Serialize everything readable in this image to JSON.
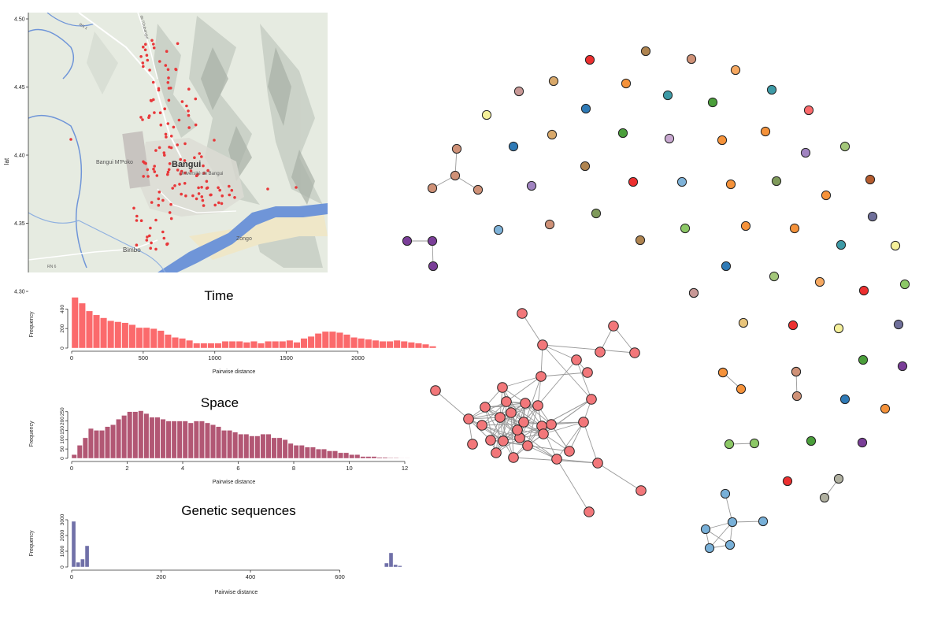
{
  "map": {
    "ylabel": "lat",
    "y_ticks": [
      "4.50",
      "4.45",
      "4.40",
      "4.35",
      "4.30"
    ],
    "ylim": [
      4.3,
      4.5
    ],
    "labels": {
      "city": "Bangui",
      "airport": "Bangui M'Poko",
      "university": "Université de Bangui",
      "bimbo": "Bimbo",
      "zongo": "Zongo",
      "rn1": "RN 1",
      "rn6": "RN 6",
      "river_road": "de l'Oubangui"
    },
    "colors": {
      "water": "#6f95d8",
      "land": "#e6ebe1",
      "dots": "#e8383a"
    }
  },
  "chart_data": [
    {
      "type": "bar",
      "title": "Time",
      "xlabel": "Pairwise distance",
      "ylabel": "Frequency",
      "color": "#fb6a6c",
      "xlim": [
        0,
        2300
      ],
      "ylim": [
        0,
        500
      ],
      "x_ticks": [
        0,
        500,
        1000,
        1500,
        2000
      ],
      "y_ticks": [
        0,
        200,
        400
      ],
      "bin_width": 50,
      "bin_start": 0,
      "values": [
        520,
        460,
        380,
        340,
        310,
        280,
        270,
        260,
        240,
        210,
        210,
        200,
        180,
        140,
        110,
        100,
        80,
        50,
        50,
        50,
        50,
        70,
        70,
        70,
        60,
        70,
        50,
        70,
        70,
        70,
        80,
        60,
        100,
        120,
        150,
        170,
        170,
        160,
        140,
        110,
        100,
        90,
        80,
        70,
        70,
        80,
        70,
        60,
        50,
        40,
        20
      ]
    },
    {
      "type": "bar",
      "title": "Space",
      "xlabel": "Pairwise distance",
      "ylabel": "Frequency",
      "color": "#b25774",
      "xlim": [
        0,
        12
      ],
      "ylim": [
        0,
        270
      ],
      "x_ticks": [
        0,
        2,
        4,
        6,
        8,
        10,
        12
      ],
      "y_ticks": [
        0,
        50,
        100,
        150,
        200,
        250
      ],
      "bin_width": 0.2,
      "bin_start": 0,
      "values": [
        20,
        70,
        110,
        160,
        150,
        150,
        170,
        180,
        210,
        230,
        250,
        250,
        255,
        240,
        220,
        220,
        210,
        200,
        200,
        200,
        200,
        190,
        200,
        200,
        190,
        180,
        170,
        150,
        150,
        140,
        130,
        130,
        120,
        120,
        130,
        130,
        110,
        110,
        100,
        80,
        70,
        70,
        60,
        60,
        50,
        50,
        40,
        40,
        30,
        30,
        20,
        20,
        10,
        10,
        10,
        5,
        5,
        3,
        3,
        2,
        2,
        1
      ]
    },
    {
      "type": "bar",
      "title": "Genetic sequences",
      "xlabel": "Pairwise distance",
      "ylabel": "Frequency",
      "color": "#7070a8",
      "xlim": [
        0,
        740
      ],
      "ylim": [
        0,
        3000
      ],
      "x_ticks": [
        0,
        200,
        400,
        600
      ],
      "y_ticks": [
        0,
        1000,
        2000,
        3000
      ],
      "bars": [
        {
          "x": 0,
          "value": 2900
        },
        {
          "x": 10,
          "value": 300
        },
        {
          "x": 20,
          "value": 500
        },
        {
          "x": 30,
          "value": 1350
        },
        {
          "x": 700,
          "value": 250
        },
        {
          "x": 710,
          "value": 900
        },
        {
          "x": 720,
          "value": 150
        },
        {
          "x": 730,
          "value": 80
        }
      ]
    },
    {
      "type": "network",
      "colors": [
        "#ec2f2f",
        "#f5923a",
        "#f6a860",
        "#fb6a6c",
        "#d8a86a",
        "#bd927b",
        "#cf9177",
        "#c89896",
        "#e8c47a",
        "#f5f09a",
        "#4a9e3a",
        "#8cc866",
        "#a3c77a",
        "#7f9a5a",
        "#2f7ab6",
        "#7eb2d8",
        "#3d9aa6",
        "#6f6f9a",
        "#7a3e98",
        "#a083c0",
        "#c8a8d0",
        "#b55c2e",
        "#af8450",
        "#b0b0a0"
      ],
      "node_fill_main": "#f2777a",
      "node_fill_bottom_cluster": "#78b0d8"
    }
  ]
}
